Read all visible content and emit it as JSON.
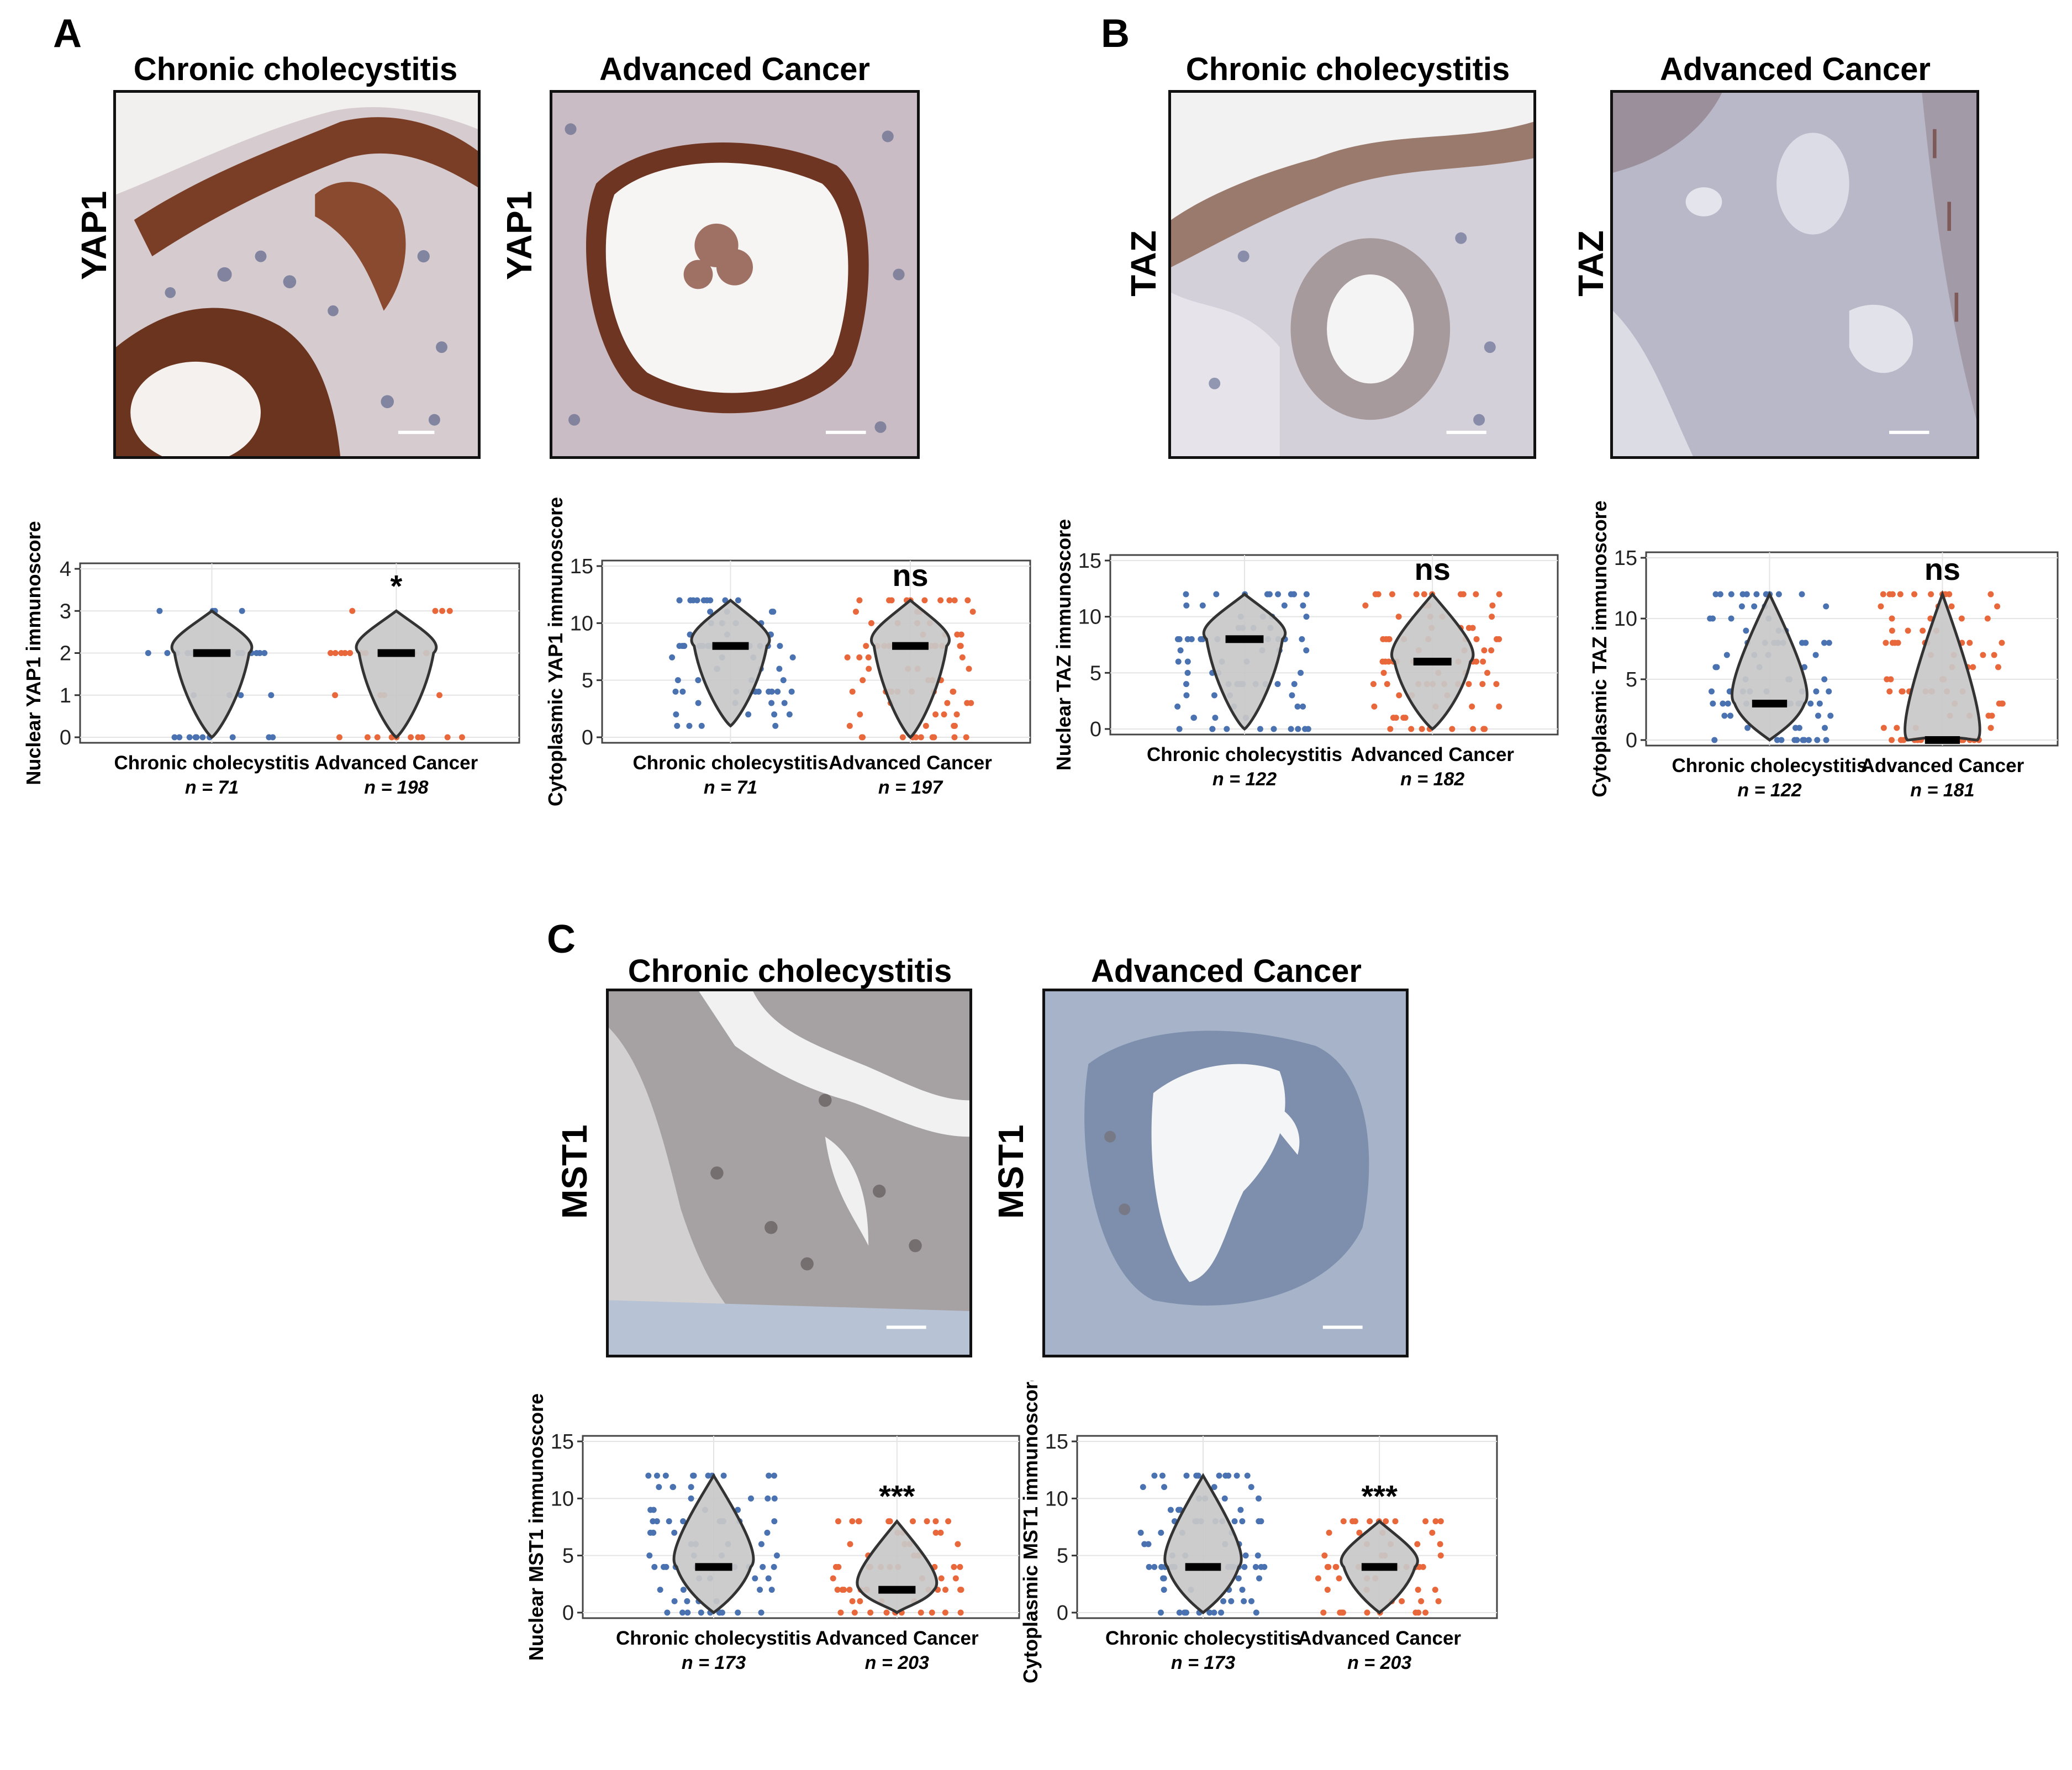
{
  "panels": {
    "A": {
      "letter": "A",
      "left_title": "Chronic cholecystitis",
      "right_title": "Advanced Cancer",
      "marker": "YAP1"
    },
    "B": {
      "letter": "B",
      "left_title": "Chronic cholecystitis",
      "right_title": "Advanced Cancer",
      "marker": "TAZ"
    },
    "C": {
      "letter": "C",
      "left_title": "Chronic cholecystitis",
      "right_title": "Advanced Cancer",
      "marker": "MST1"
    }
  },
  "colors": {
    "group1": "#4a72b0",
    "group2": "#e8683c",
    "violin_fill": "#c8c8c8",
    "violin_stroke": "#333333",
    "median": "#000000"
  },
  "chart_data": [
    {
      "id": "a-nuclear",
      "type": "violin",
      "ylabel": "Nuclear YAP1 immunoscore",
      "ylim": [
        0,
        4
      ],
      "yticks": [
        "0",
        "1",
        "2",
        "3",
        "4"
      ],
      "ytick_values": [
        0,
        1,
        2,
        3,
        4
      ],
      "categories": [
        "Chronic cholecystitis",
        "Advanced Cancer"
      ],
      "n_labels": [
        "n = 71",
        "n = 198"
      ],
      "medians": [
        2,
        2
      ],
      "significance": "*",
      "grid": true,
      "series": [
        {
          "min": 0,
          "max": 3
        },
        {
          "min": 0,
          "max": 3
        }
      ]
    },
    {
      "id": "a-cyto",
      "type": "violin",
      "ylabel": "Cytoplasmic YAP1 immunoscore",
      "ylim": [
        0,
        15
      ],
      "yticks": [
        "0",
        "5",
        "10",
        "15"
      ],
      "ytick_values": [
        0,
        5,
        10,
        15
      ],
      "categories": [
        "Chronic cholecystitis",
        "Advanced Cancer"
      ],
      "n_labels": [
        "n = 71",
        "n = 197"
      ],
      "medians": [
        8,
        8
      ],
      "significance": "ns",
      "grid": true,
      "series": [
        {
          "min": 1,
          "max": 12
        },
        {
          "min": 0,
          "max": 12
        }
      ]
    },
    {
      "id": "b-nuclear",
      "type": "violin",
      "ylabel": "Nuclear TAZ immunoscore",
      "ylim": [
        0,
        15
      ],
      "yticks": [
        "0",
        "5",
        "10",
        "15"
      ],
      "ytick_values": [
        0,
        5,
        10,
        15
      ],
      "categories": [
        "Chronic cholecystitis",
        "Advanced Cancer"
      ],
      "n_labels": [
        "n = 122",
        "n = 182"
      ],
      "medians": [
        8,
        6
      ],
      "significance": "ns",
      "grid": true,
      "series": [
        {
          "min": 0,
          "max": 12
        },
        {
          "min": 0,
          "max": 12
        }
      ]
    },
    {
      "id": "b-cyto",
      "type": "violin",
      "ylabel": "Cytoplasmic TAZ immunoscore",
      "ylim": [
        0,
        15
      ],
      "yticks": [
        "0",
        "5",
        "10",
        "15"
      ],
      "ytick_values": [
        0,
        5,
        10,
        15
      ],
      "categories": [
        "Chronic cholecystitis",
        "Advanced Cancer"
      ],
      "n_labels": [
        "n = 122",
        "n = 181"
      ],
      "medians": [
        3,
        0
      ],
      "significance": "ns",
      "grid": true,
      "series": [
        {
          "min": 0,
          "max": 12
        },
        {
          "min": 0,
          "max": 12
        }
      ]
    },
    {
      "id": "c-nuclear",
      "type": "violin",
      "ylabel": "Nuclear MST1 immunoscore",
      "ylim": [
        0,
        15
      ],
      "yticks": [
        "0",
        "5",
        "10",
        "15"
      ],
      "ytick_values": [
        0,
        5,
        10,
        15
      ],
      "categories": [
        "Chronic cholecystitis",
        "Advanced Cancer"
      ],
      "n_labels": [
        "n = 173",
        "n = 203"
      ],
      "medians": [
        4,
        2
      ],
      "significance": "***",
      "grid": true,
      "series": [
        {
          "min": 0,
          "max": 12
        },
        {
          "min": 0,
          "max": 8
        }
      ]
    },
    {
      "id": "c-cyto",
      "type": "violin",
      "ylabel": "Cytoplasmic MST1 immunoscore",
      "ylim": [
        0,
        15
      ],
      "yticks": [
        "0",
        "5",
        "10",
        "15"
      ],
      "ytick_values": [
        0,
        5,
        10,
        15
      ],
      "categories": [
        "Chronic cholecystitis",
        "Advanced Cancer"
      ],
      "n_labels": [
        "n = 173",
        "n = 203"
      ],
      "medians": [
        4,
        4
      ],
      "significance": "***",
      "grid": true,
      "series": [
        {
          "min": 0,
          "max": 12
        },
        {
          "min": 0,
          "max": 8
        }
      ]
    }
  ]
}
